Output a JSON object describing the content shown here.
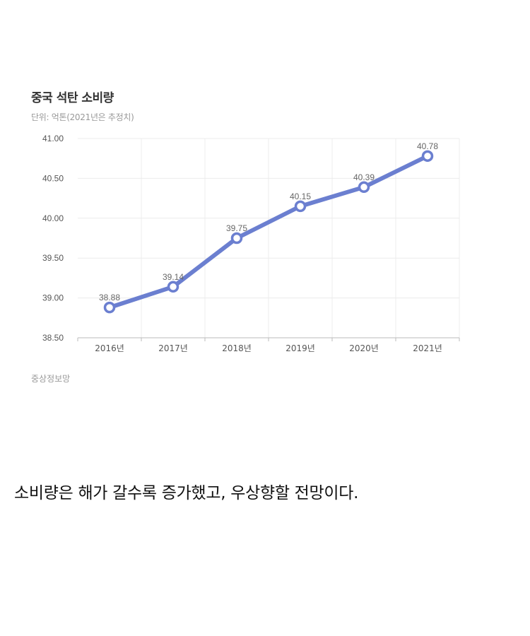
{
  "colors": {
    "series": "#6b7fd0",
    "grid": "#ececec",
    "axis": "#bbbbbb"
  },
  "chart_data": {
    "type": "line",
    "title": "중국 석탄 소비량",
    "subtitle": "단위: 억톤(2021년은 추정치)",
    "categories": [
      "2016년",
      "2017년",
      "2018년",
      "2019년",
      "2020년",
      "2021년"
    ],
    "series": [
      {
        "values": [
          38.88,
          39.14,
          39.75,
          40.15,
          40.39,
          40.78
        ],
        "labels": [
          "38.88",
          "39.14",
          "39.75",
          "40.15",
          "40.39",
          "40.78"
        ]
      }
    ],
    "ylim": [
      38.5,
      41.0
    ],
    "yticks": [
      "41.00",
      "40.50",
      "40.00",
      "39.50",
      "39.00",
      "38.50"
    ],
    "ytick_values": [
      41.0,
      40.5,
      40.0,
      39.5,
      39.0,
      38.5
    ],
    "grid": true,
    "legend": "none",
    "source": "중상정보망"
  },
  "caption": "소비량은 해가 갈수록 증가했고, 우상향할 전망이다."
}
